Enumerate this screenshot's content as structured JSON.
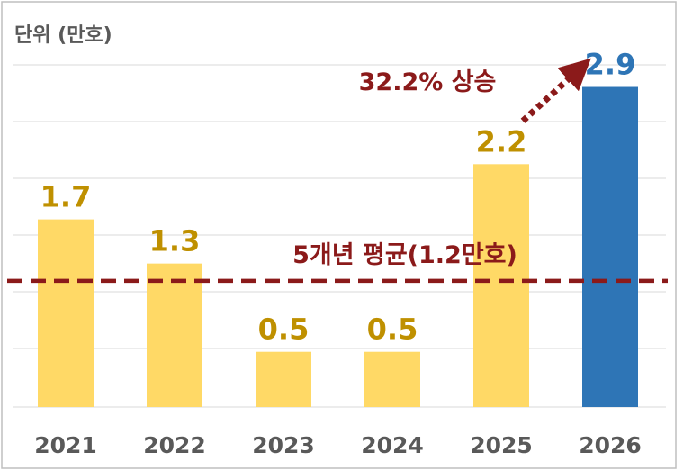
{
  "chart_data": {
    "type": "bar",
    "unit_label": "단위 (만호)",
    "categories": [
      "2021",
      "2022",
      "2023",
      "2024",
      "2025",
      "2026"
    ],
    "values": [
      1.7,
      1.3,
      0.5,
      0.5,
      2.2,
      2.9
    ],
    "value_labels": [
      "1.7",
      "1.3",
      "0.5",
      "0.5",
      "2.2",
      "2.9"
    ],
    "ylim": [
      0,
      3.1
    ],
    "grid": true,
    "colors": {
      "bar_default": "#ffd966",
      "bar_highlight": "#2e75b6",
      "label_default": "#bf9000",
      "label_highlight": "#2e75b6",
      "reference": "#8b1a1a",
      "grid": "#d9d9d9",
      "frame": "#bfbfbf"
    },
    "highlight_index": 5,
    "average": {
      "value": 1.2,
      "label": "5개년 평균(1.2만호)"
    },
    "growth_annotation": {
      "label": "32.2% 상승",
      "from_index": 4,
      "to_index": 5
    }
  }
}
